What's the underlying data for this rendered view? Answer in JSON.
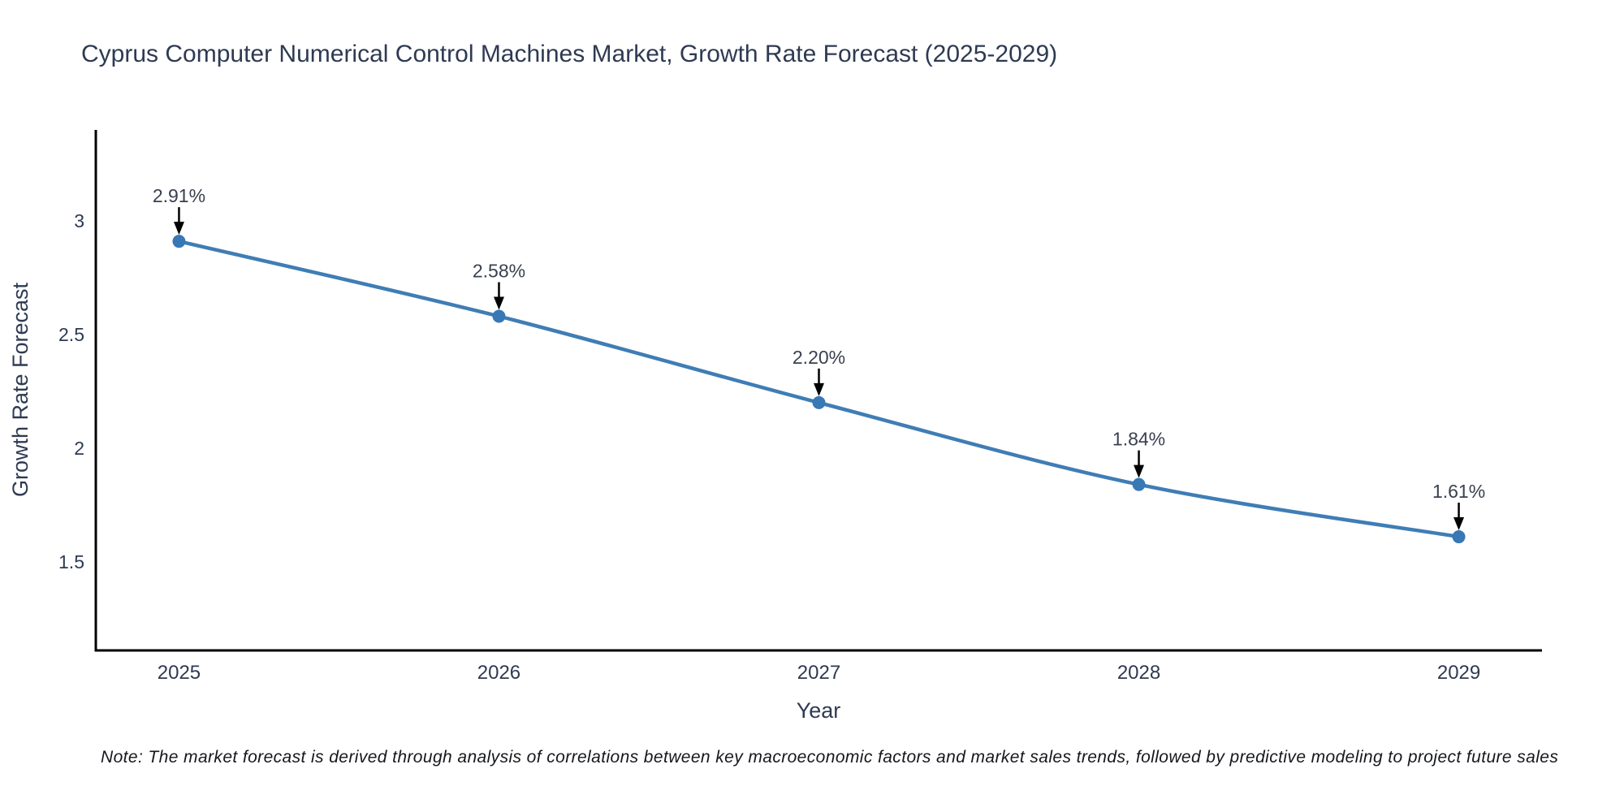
{
  "title": "Cyprus Computer Numerical Control Machines Market, Growth Rate Forecast (2025-2029)",
  "note": "Note: The market forecast is derived through analysis of correlations between key macroeconomic factors and market sales trends, followed by predictive modeling to project future sales",
  "colors": {
    "line": "#3f7db5",
    "marker": "#3878b4",
    "axis": "#000000",
    "text": "#2e3a52",
    "data_label": "#39404f",
    "arrow": "#000000",
    "note_text": "#15171c",
    "background": "#ffffff"
  },
  "chart_data": {
    "type": "line",
    "title": "Cyprus Computer Numerical Control Machines Market, Growth Rate Forecast (2025-2029)",
    "xlabel": "Year",
    "ylabel": "Growth Rate Forecast",
    "categories": [
      2025,
      2026,
      2027,
      2028,
      2029
    ],
    "series": [
      {
        "name": "Growth Rate Forecast",
        "values": [
          2.91,
          2.58,
          2.2,
          1.84,
          1.61
        ],
        "point_labels": [
          "2.91%",
          "2.58%",
          "2.20%",
          "1.84%",
          "1.61%"
        ]
      }
    ],
    "x_ticks": [
      "2025",
      "2026",
      "2027",
      "2028",
      "2029"
    ],
    "y_ticks": [
      3,
      2.5,
      2,
      1.5
    ],
    "xlim": [
      2024.74,
      2029.26
    ],
    "ylim": [
      1.11,
      3.4
    ],
    "grid": false,
    "legend_position": "none",
    "annotation_style": "value label with downward arrow above each point"
  }
}
